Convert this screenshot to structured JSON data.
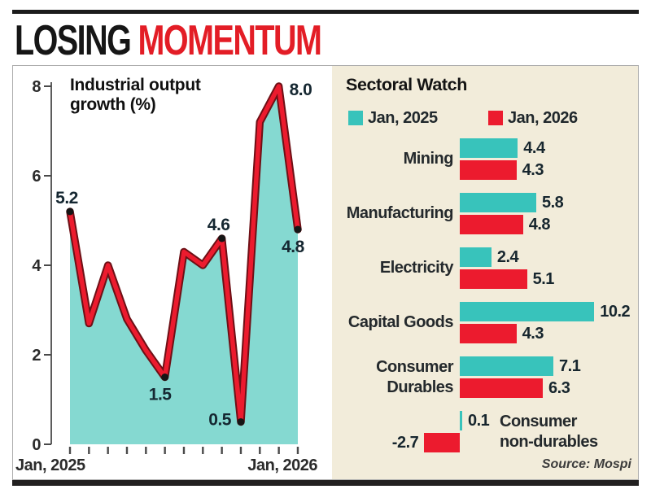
{
  "header": {
    "title_black": "LOSING",
    "title_red": "MOMENTUM"
  },
  "colors": {
    "teal_bar": "#38c3bb",
    "teal_area": "#85d9d1",
    "red": "#ec1b2e",
    "line_outline": "#6e1016",
    "dot": "#151515",
    "cream_panel": "#f2ecda",
    "headline_red": "#e31d26",
    "rule_black": "#1c1c1c"
  },
  "chart_data": [
    {
      "type": "area",
      "title": "Industrial output growth (%)",
      "x": [
        "Jan 2025",
        "Feb 2025",
        "Mar 2025",
        "Apr 2025",
        "May 2025",
        "Jun 2025",
        "Jul 2025",
        "Aug 2025",
        "Sep 2025",
        "Oct 2025",
        "Nov 2025",
        "Dec 2025",
        "Jan 2026"
      ],
      "values": [
        5.2,
        2.7,
        4.0,
        2.8,
        2.1,
        1.5,
        4.3,
        4.0,
        4.6,
        0.5,
        7.2,
        8.0,
        4.8
      ],
      "ylim": [
        0,
        8
      ],
      "y_ticks": [
        0,
        2,
        4,
        6,
        8
      ],
      "grid": false,
      "x_axis_labels": {
        "start": "Jan, 2025",
        "end": "Jan, 2026"
      },
      "labeled_points": [
        {
          "index": 0,
          "label": "5.2",
          "pos": "above",
          "dot": true
        },
        {
          "index": 5,
          "label": "1.5",
          "pos": "below",
          "dot": true
        },
        {
          "index": 8,
          "label": "4.6",
          "pos": "above",
          "dot": true
        },
        {
          "index": 9,
          "label": "0.5",
          "pos": "left",
          "dot": true
        },
        {
          "index": 11,
          "label": "8.0",
          "pos": "right",
          "dot": false
        },
        {
          "index": 12,
          "label": "4.8",
          "pos": "below",
          "dot": true
        }
      ]
    },
    {
      "type": "bar",
      "orientation": "horizontal",
      "title": "Sectoral Watch",
      "legend": [
        {
          "label": "Jan, 2025",
          "color": "#38c3bb"
        },
        {
          "label": "Jan, 2026",
          "color": "#ec1b2e"
        }
      ],
      "categories": [
        "Mining",
        "Manufacturing",
        "Electricity",
        "Capital Goods",
        "Consumer Durables",
        "Consumer non-durables"
      ],
      "series": [
        {
          "name": "Jan, 2025",
          "values": [
            4.4,
            5.8,
            2.4,
            10.2,
            7.1,
            0.1
          ]
        },
        {
          "name": "Jan, 2026",
          "values": [
            4.3,
            4.8,
            5.1,
            4.3,
            6.3,
            -2.7
          ]
        }
      ],
      "rows": [
        {
          "label_lines": [
            "Mining"
          ],
          "side": "left"
        },
        {
          "label_lines": [
            "Manufacturing"
          ],
          "side": "left"
        },
        {
          "label_lines": [
            "Electricity"
          ],
          "side": "left"
        },
        {
          "label_lines": [
            "Capital Goods"
          ],
          "side": "left"
        },
        {
          "label_lines": [
            "Consumer",
            "Durables"
          ],
          "side": "left"
        },
        {
          "label_lines": [
            "Consumer",
            "non-durables"
          ],
          "side": "right"
        }
      ],
      "source": "Source: Mospi"
    }
  ]
}
